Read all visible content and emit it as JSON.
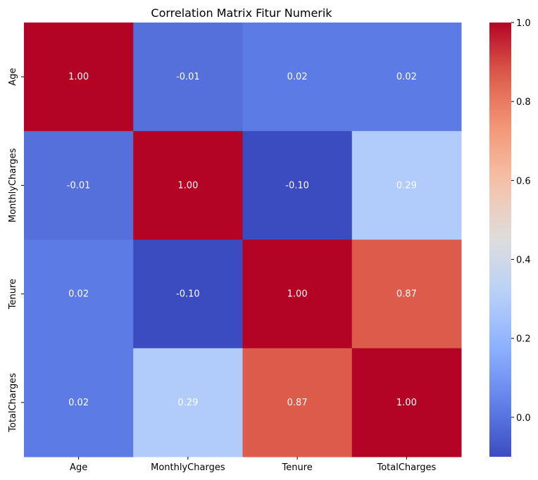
{
  "chart_data": {
    "type": "heatmap",
    "title": "Correlation Matrix Fitur Numerik",
    "xlabel": "",
    "ylabel": "",
    "x_labels": [
      "Age",
      "MonthlyCharges",
      "Tenure",
      "TotalCharges"
    ],
    "y_labels": [
      "Age",
      "MonthlyCharges",
      "Tenure",
      "TotalCharges"
    ],
    "values": [
      [
        1.0,
        -0.01,
        0.02,
        0.02
      ],
      [
        -0.01,
        1.0,
        -0.1,
        0.29
      ],
      [
        0.02,
        -0.1,
        1.0,
        0.87
      ],
      [
        0.02,
        0.29,
        0.87,
        1.0
      ]
    ],
    "value_format": "2 decimals",
    "colormap": "coolwarm",
    "vmin": -0.1,
    "vmax": 1.0,
    "colorbar_ticks": [
      0.0,
      0.2,
      0.4,
      0.6,
      0.8,
      1.0
    ],
    "colorbar_tick_labels": [
      "0.0",
      "0.2",
      "0.4",
      "0.6",
      "0.8",
      "1.0"
    ],
    "colors": {
      "low": "#3b4cc0",
      "mid": "#dddddd",
      "high": "#b40426",
      "annotation_text": "#ffffff",
      "axis_text": "#000000"
    }
  }
}
